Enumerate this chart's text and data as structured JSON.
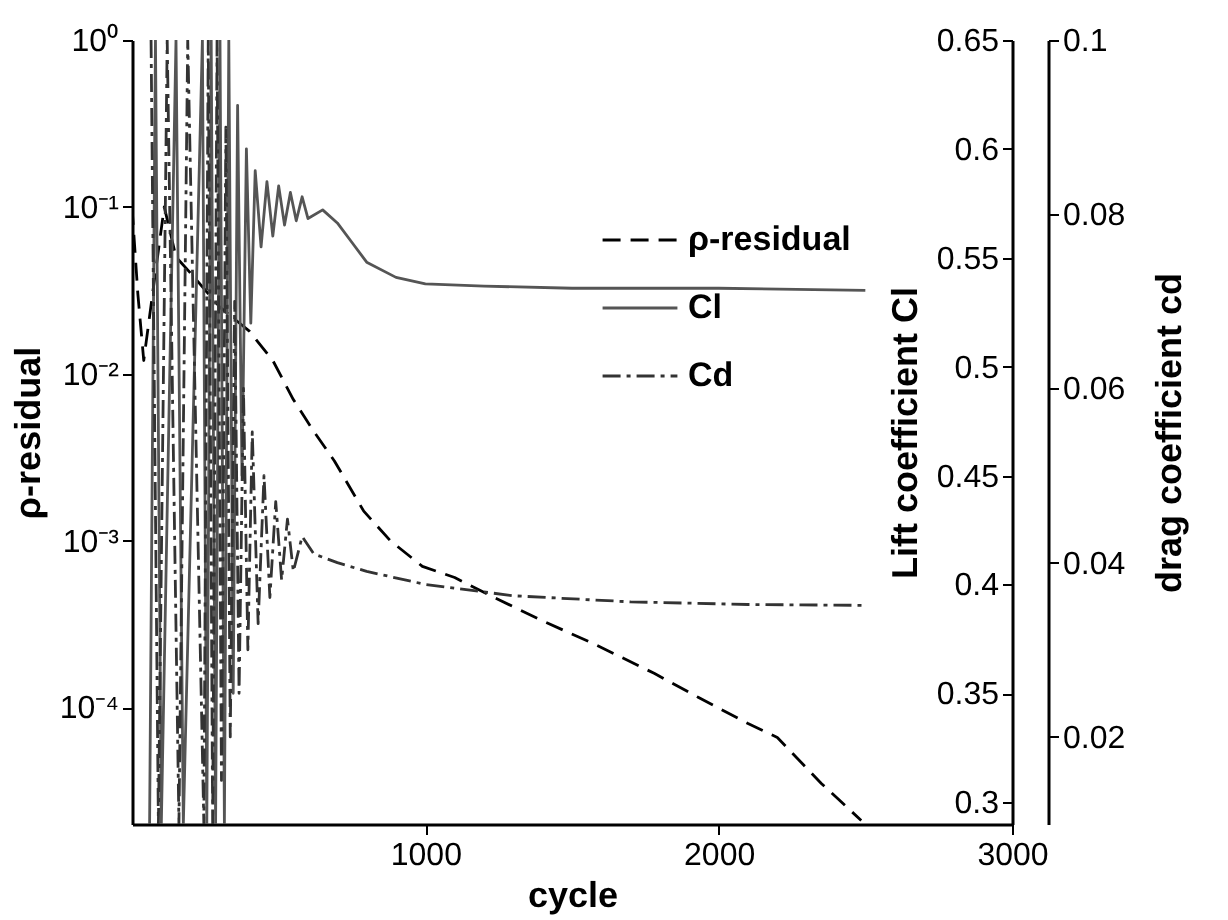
{
  "chart_data": {
    "type": "line",
    "xlabel": "cycle",
    "ylabel": "ρ-residual",
    "y2label": "Lift coefficient Cl",
    "y3label": "drag coefficient cd",
    "xlim": [
      0,
      3000
    ],
    "xticks": [
      1000,
      2000,
      3000
    ],
    "ylim": [
      2e-05,
      1
    ],
    "log": true,
    "yticks": [
      {
        "value": 1,
        "label": "10⁰"
      },
      {
        "value": 0.1,
        "label": "10⁻¹"
      },
      {
        "value": 0.01,
        "label": "10⁻²"
      },
      {
        "value": 0.001,
        "label": "10⁻³"
      },
      {
        "value": 0.0001,
        "label": "10⁻⁴"
      }
    ],
    "y2lim": [
      0.29,
      0.65
    ],
    "y2ticks": [
      0.3,
      0.35,
      0.4,
      0.45,
      0.5,
      0.55,
      0.6,
      0.65
    ],
    "y3lim": [
      0.01,
      0.1
    ],
    "y3ticks": [
      0.02,
      0.04,
      0.06,
      0.08,
      0.1
    ],
    "grid": false,
    "legend": "top right",
    "series": [
      {
        "name": "ρ-residual",
        "color": "#000000",
        "line_style": "dashed",
        "axis": "y",
        "x": [
          0,
          20,
          40,
          70,
          110,
          150,
          200,
          300,
          400,
          480,
          550,
          620,
          690,
          790,
          880,
          990,
          1100,
          1230,
          1400,
          1575,
          1780,
          1930,
          2100,
          2200,
          2350,
          2486
        ],
        "values": [
          0.1,
          0.03,
          0.012,
          0.03,
          0.1,
          0.05,
          0.04,
          0.025,
          0.018,
          0.012,
          0.007,
          0.0045,
          0.003,
          0.0015,
          0.001,
          0.0007,
          0.0006,
          0.00046,
          0.00033,
          0.00024,
          0.00016,
          0.000115,
          8e-05,
          6.6e-05,
          3.5e-05,
          2.1e-05
        ]
      },
      {
        "name": "Cl",
        "color": "#555555",
        "line_style": "solid",
        "axis": "y2",
        "x": [
          60,
          80,
          100,
          150,
          175,
          240,
          255,
          270,
          285,
          300,
          315,
          330,
          345,
          360,
          375,
          390,
          405,
          420,
          440,
          460,
          480,
          500,
          520,
          540,
          560,
          580,
          600,
          650,
          700,
          750,
          800,
          900,
          1000,
          1200,
          1500,
          2000,
          2500
        ],
        "values": [
          0.29,
          0.65,
          0.29,
          0.65,
          0.29,
          0.65,
          0.29,
          0.65,
          0.29,
          0.65,
          0.29,
          0.65,
          0.35,
          0.62,
          0.45,
          0.6,
          0.52,
          0.59,
          0.555,
          0.585,
          0.56,
          0.583,
          0.565,
          0.58,
          0.567,
          0.578,
          0.568,
          0.572,
          0.566,
          0.557,
          0.548,
          0.541,
          0.538,
          0.537,
          0.536,
          0.536,
          0.535
        ]
      },
      {
        "name": "Cd",
        "color": "#333333",
        "line_style": "dotted",
        "axis": "y3",
        "x": [
          65,
          90,
          120,
          160,
          190,
          245,
          260,
          275,
          290,
          305,
          320,
          335,
          350,
          365,
          380,
          395,
          410,
          430,
          450,
          470,
          490,
          510,
          530,
          550,
          580,
          620,
          700,
          800,
          1000,
          1300,
          1700,
          2100,
          2500
        ],
        "values": [
          0.1,
          0.01,
          0.1,
          0.01,
          0.1,
          0.01,
          0.1,
          0.01,
          0.1,
          0.015,
          0.09,
          0.02,
          0.07,
          0.025,
          0.06,
          0.03,
          0.055,
          0.033,
          0.05,
          0.036,
          0.047,
          0.038,
          0.045,
          0.039,
          0.043,
          0.041,
          0.04,
          0.039,
          0.0375,
          0.0362,
          0.0355,
          0.0352,
          0.0351
        ]
      }
    ]
  }
}
